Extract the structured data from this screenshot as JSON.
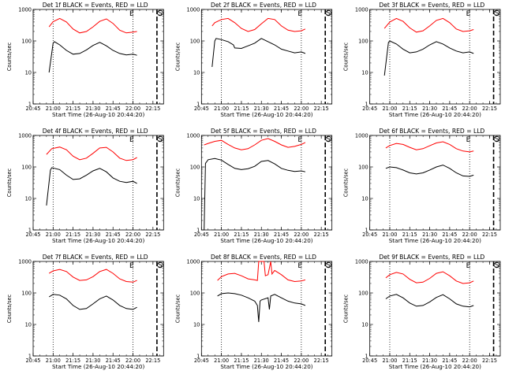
{
  "chart_data": [
    {
      "type": "line",
      "title": "Det 1f BLACK = Events, RED = LLD",
      "xlabel": "Start Time (26-Aug-10 20:44:20)",
      "ylabel": "Counts/sec",
      "yscale": "log",
      "ylim": [
        1,
        1000
      ],
      "xlim": [
        0,
        98
      ],
      "x_ticks": [
        "20:45",
        "21:00",
        "21:15",
        "21:30",
        "21:45",
        "22:00",
        "22:15"
      ],
      "y_ticks": [
        "1",
        "10",
        "100",
        "1000"
      ],
      "markers": [
        "E",
        "S"
      ],
      "vlines_dotted": [
        "21:00",
        "22:00"
      ],
      "vline_dashed": "22:18",
      "series": [
        {
          "color": "#000000",
          "x": [
            12,
            15,
            16,
            20,
            25,
            30,
            35,
            40,
            45,
            50,
            55,
            60,
            65,
            70,
            75,
            78
          ],
          "y": [
            10,
            85,
            95,
            75,
            50,
            38,
            40,
            52,
            72,
            90,
            70,
            50,
            40,
            36,
            38,
            35
          ]
        },
        {
          "color": "#ff0000",
          "x": [
            12,
            15,
            20,
            25,
            30,
            35,
            40,
            45,
            50,
            55,
            60,
            65,
            70,
            75,
            78
          ],
          "y": [
            280,
            410,
            520,
            400,
            240,
            180,
            200,
            280,
            420,
            500,
            360,
            220,
            180,
            190,
            200
          ]
        }
      ]
    },
    {
      "type": "line",
      "title": "Det 2f BLACK = Events, RED = LLD",
      "xlabel": "Start Time (26-Aug-10 20:44:20)",
      "ylabel": "Counts/sec",
      "yscale": "log",
      "ylim": [
        1,
        1000
      ],
      "xlim": [
        0,
        98
      ],
      "x_ticks": [
        "20:45",
        "21:00",
        "21:15",
        "21:30",
        "21:45",
        "22:00",
        "22:15"
      ],
      "y_ticks": [
        "1",
        "10",
        "100",
        "1000"
      ],
      "markers": [
        "E",
        "S"
      ],
      "vlines_dotted": [
        "21:00",
        "22:00"
      ],
      "vline_dashed": "22:18",
      "series": [
        {
          "color": "#000000",
          "x": [
            8,
            10,
            11,
            15,
            20,
            24,
            25,
            30,
            35,
            40,
            45,
            50,
            55,
            60,
            65,
            70,
            75,
            78
          ],
          "y": [
            15,
            100,
            120,
            110,
            95,
            75,
            60,
            58,
            70,
            85,
            120,
            95,
            75,
            55,
            48,
            42,
            45,
            40
          ]
        },
        {
          "color": "#ff0000",
          "x": [
            8,
            10,
            15,
            20,
            25,
            30,
            35,
            40,
            45,
            50,
            55,
            60,
            65,
            70,
            75,
            78
          ],
          "y": [
            300,
            380,
            480,
            520,
            380,
            250,
            200,
            230,
            350,
            520,
            480,
            300,
            220,
            200,
            210,
            240
          ]
        }
      ]
    },
    {
      "type": "line",
      "title": "Det 3f BLACK = Events, RED = LLD",
      "xlabel": "Start Time (26-Aug-10 20:44:20)",
      "ylabel": "Counts/sec",
      "yscale": "log",
      "ylim": [
        1,
        1000
      ],
      "xlim": [
        0,
        98
      ],
      "x_ticks": [
        "20:45",
        "21:00",
        "21:15",
        "21:30",
        "21:45",
        "22:00",
        "22:15"
      ],
      "y_ticks": [
        "1",
        "10",
        "100",
        "1000"
      ],
      "markers": [
        "E",
        "S"
      ],
      "vlines_dotted": [
        "21:00",
        "22:00"
      ],
      "vline_dashed": "22:18",
      "series": [
        {
          "color": "#000000",
          "x": [
            11,
            14,
            15,
            20,
            25,
            30,
            35,
            40,
            45,
            50,
            55,
            60,
            65,
            70,
            75,
            78
          ],
          "y": [
            8,
            90,
            100,
            80,
            55,
            42,
            45,
            55,
            75,
            95,
            80,
            60,
            48,
            42,
            45,
            40
          ]
        },
        {
          "color": "#ff0000",
          "x": [
            11,
            15,
            20,
            25,
            30,
            35,
            40,
            45,
            50,
            55,
            60,
            65,
            70,
            75,
            78
          ],
          "y": [
            250,
            400,
            520,
            420,
            260,
            190,
            210,
            300,
            450,
            520,
            380,
            240,
            200,
            210,
            230
          ]
        }
      ]
    },
    {
      "type": "line",
      "title": "Det 4f BLACK = Events, RED = LLD",
      "xlabel": "Start Time (26-Aug-10 20:44:20)",
      "ylabel": "Counts/sec",
      "yscale": "log",
      "ylim": [
        1,
        1000
      ],
      "xlim": [
        0,
        98
      ],
      "x_ticks": [
        "20:45",
        "21:00",
        "21:15",
        "21:30",
        "21:45",
        "22:00",
        "22:15"
      ],
      "y_ticks": [
        "1",
        "10",
        "100",
        "1000"
      ],
      "markers": [
        "E",
        "S"
      ],
      "vlines_dotted": [
        "21:00",
        "22:00"
      ],
      "vline_dashed": "22:18",
      "series": [
        {
          "color": "#000000",
          "x": [
            10,
            13,
            14,
            20,
            25,
            30,
            35,
            40,
            45,
            50,
            55,
            60,
            65,
            70,
            75,
            78
          ],
          "y": [
            6,
            80,
            95,
            82,
            55,
            40,
            42,
            55,
            75,
            90,
            70,
            45,
            35,
            32,
            35,
            30
          ]
        },
        {
          "color": "#ff0000",
          "x": [
            10,
            14,
            20,
            25,
            30,
            35,
            40,
            45,
            50,
            55,
            60,
            65,
            70,
            75,
            78
          ],
          "y": [
            250,
            380,
            430,
            350,
            220,
            170,
            190,
            270,
            400,
            420,
            300,
            190,
            160,
            170,
            200
          ]
        }
      ]
    },
    {
      "type": "line",
      "title": "Det 5f BLACK = Events, RED = LLD",
      "xlabel": "Start Time (26-Aug-10 20:44:20)",
      "ylabel": "Counts/sec",
      "yscale": "log",
      "ylim": [
        1,
        1000
      ],
      "xlim": [
        0,
        98
      ],
      "x_ticks": [
        "20:45",
        "21:00",
        "21:15",
        "21:30",
        "21:45",
        "22:00",
        "22:15"
      ],
      "y_ticks": [
        "1",
        "10",
        "100",
        "1000"
      ],
      "markers": [
        "E",
        "S"
      ],
      "vlines_dotted": [
        "21:00",
        "22:00"
      ],
      "vline_dashed": "22:18",
      "series": [
        {
          "color": "#000000",
          "x": [
            2,
            3,
            5,
            10,
            15,
            20,
            25,
            30,
            35,
            40,
            45,
            50,
            55,
            60,
            65,
            70,
            75,
            78
          ],
          "y": [
            1,
            130,
            170,
            185,
            165,
            120,
            90,
            82,
            88,
            105,
            150,
            160,
            125,
            90,
            78,
            72,
            75,
            70
          ]
        },
        {
          "color": "#ff0000",
          "x": [
            2,
            5,
            10,
            15,
            20,
            25,
            30,
            35,
            40,
            45,
            50,
            55,
            60,
            65,
            70,
            75,
            78
          ],
          "y": [
            500,
            560,
            650,
            700,
            520,
            400,
            350,
            380,
            500,
            700,
            800,
            650,
            500,
            420,
            450,
            520,
            600
          ]
        }
      ]
    },
    {
      "type": "line",
      "title": "Det 6f BLACK = Events, RED = LLD",
      "xlabel": "Start Time (26-Aug-10 20:44:20)",
      "ylabel": "Counts/sec",
      "yscale": "log",
      "ylim": [
        1,
        1000
      ],
      "xlim": [
        0,
        98
      ],
      "x_ticks": [
        "20:45",
        "21:00",
        "21:15",
        "21:30",
        "21:45",
        "22:00",
        "22:15"
      ],
      "y_ticks": [
        "1",
        "10",
        "100",
        "1000"
      ],
      "markers": [
        "E",
        "S"
      ],
      "vlines_dotted": [
        "21:00",
        "22:00"
      ],
      "vline_dashed": "22:18",
      "series": [
        {
          "color": "#000000",
          "x": [
            12,
            15,
            20,
            25,
            30,
            35,
            40,
            45,
            50,
            55,
            60,
            65,
            70,
            75,
            78
          ],
          "y": [
            90,
            100,
            95,
            80,
            65,
            60,
            65,
            80,
            100,
            115,
            90,
            65,
            52,
            50,
            55
          ]
        },
        {
          "color": "#ff0000",
          "x": [
            12,
            15,
            20,
            25,
            30,
            35,
            40,
            45,
            50,
            55,
            60,
            65,
            70,
            75,
            78
          ],
          "y": [
            400,
            480,
            560,
            520,
            420,
            350,
            380,
            470,
            580,
            630,
            520,
            380,
            320,
            300,
            320
          ]
        }
      ]
    },
    {
      "type": "line",
      "title": "Det 7f BLACK = Events, RED = LLD",
      "xlabel": "Start Time (26-Aug-10 20:44:20)",
      "ylabel": "Counts/sec",
      "yscale": "log",
      "ylim": [
        1,
        1000
      ],
      "xlim": [
        0,
        98
      ],
      "x_ticks": [
        "20:45",
        "21:00",
        "21:15",
        "21:30",
        "21:45",
        "22:00",
        "22:15"
      ],
      "y_ticks": [
        "1",
        "10",
        "100",
        "1000"
      ],
      "markers": [
        "E",
        "S"
      ],
      "vlines_dotted": [
        "21:00",
        "22:00"
      ],
      "vline_dashed": "22:18",
      "series": [
        {
          "color": "#000000",
          "x": [
            12,
            15,
            20,
            25,
            30,
            35,
            40,
            45,
            50,
            55,
            60,
            65,
            70,
            75,
            78
          ],
          "y": [
            75,
            90,
            85,
            65,
            40,
            30,
            32,
            45,
            65,
            80,
            60,
            40,
            32,
            30,
            35
          ]
        },
        {
          "color": "#ff0000",
          "x": [
            12,
            15,
            20,
            25,
            30,
            35,
            40,
            45,
            50,
            55,
            60,
            65,
            70,
            75,
            78
          ],
          "y": [
            420,
            500,
            560,
            480,
            320,
            250,
            260,
            330,
            480,
            560,
            420,
            280,
            230,
            220,
            250
          ]
        }
      ]
    },
    {
      "type": "line",
      "title": "Det 8f BLACK = Events, RED = LLD",
      "xlabel": "Start Time (26-Aug-10 20:44:20)",
      "ylabel": "Counts/sec",
      "yscale": "log",
      "ylim": [
        1,
        1000
      ],
      "xlim": [
        0,
        98
      ],
      "x_ticks": [
        "20:45",
        "21:00",
        "21:15",
        "21:30",
        "21:45",
        "22:00",
        "22:15"
      ],
      "y_ticks": [
        "1",
        "10",
        "100",
        "1000"
      ],
      "markers": [
        "E",
        "S"
      ],
      "vlines_dotted": [
        "21:00",
        "22:00"
      ],
      "vline_dashed": "22:18",
      "series": [
        {
          "color": "#000000",
          "x": [
            12,
            15,
            20,
            25,
            30,
            35,
            40,
            42,
            43,
            44,
            45,
            50,
            51,
            52,
            55,
            60,
            65,
            70,
            75,
            78
          ],
          "y": [
            80,
            95,
            100,
            95,
            85,
            70,
            55,
            40,
            12,
            55,
            60,
            70,
            30,
            80,
            90,
            70,
            55,
            48,
            45,
            40
          ]
        },
        {
          "color": "#ff0000",
          "x": [
            12,
            15,
            20,
            25,
            30,
            35,
            40,
            42,
            43,
            45,
            47,
            48,
            50,
            52,
            53,
            55,
            60,
            65,
            70,
            75,
            78
          ],
          "y": [
            250,
            330,
            400,
            420,
            350,
            280,
            260,
            250,
            1000,
            1000,
            1000,
            350,
            380,
            1000,
            400,
            520,
            380,
            260,
            230,
            240,
            260
          ]
        }
      ]
    },
    {
      "type": "line",
      "title": "Det 9f BLACK = Events, RED = LLD",
      "xlabel": "Start Time (26-Aug-10 20:44:20)",
      "ylabel": "Counts/sec",
      "yscale": "log",
      "ylim": [
        1,
        1000
      ],
      "xlim": [
        0,
        98
      ],
      "x_ticks": [
        "20:45",
        "21:00",
        "21:15",
        "21:30",
        "21:45",
        "22:00",
        "22:15"
      ],
      "y_ticks": [
        "1",
        "10",
        "100",
        "1000"
      ],
      "markers": [
        "E",
        "S"
      ],
      "vlines_dotted": [
        "21:00",
        "22:00"
      ],
      "vline_dashed": "22:18",
      "series": [
        {
          "color": "#000000",
          "x": [
            12,
            15,
            20,
            25,
            30,
            35,
            40,
            45,
            50,
            55,
            60,
            65,
            70,
            75,
            78
          ],
          "y": [
            65,
            80,
            90,
            70,
            48,
            38,
            40,
            52,
            72,
            88,
            65,
            45,
            38,
            36,
            40
          ]
        },
        {
          "color": "#ff0000",
          "x": [
            12,
            15,
            20,
            25,
            30,
            35,
            40,
            45,
            50,
            55,
            60,
            65,
            70,
            75,
            78
          ],
          "y": [
            300,
            380,
            450,
            400,
            270,
            210,
            220,
            290,
            420,
            470,
            350,
            240,
            200,
            210,
            240
          ]
        }
      ]
    }
  ]
}
